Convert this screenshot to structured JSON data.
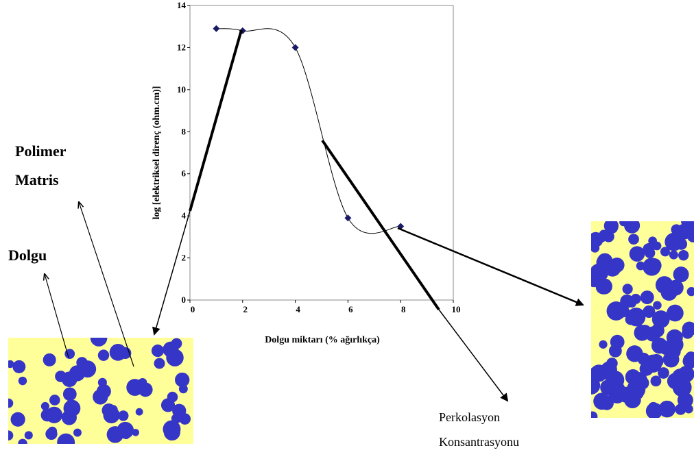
{
  "chart_data": {
    "type": "line",
    "x_label": "Dolgu miktarı (% ağırlıkça)",
    "y_label": "log [elektriksel direnç (ohm.cm)]",
    "x": [
      1,
      2,
      4,
      6,
      8
    ],
    "series": [
      {
        "color": "#1a1a66",
        "values": [
          12.9,
          12.8,
          12,
          3.9,
          3.5
        ]
      }
    ],
    "xlim": [
      0,
      10
    ],
    "xticks": [
      0,
      2,
      4,
      6,
      8,
      10
    ],
    "ylim": [
      0,
      14
    ],
    "yticks": [
      0,
      2,
      4,
      6,
      8,
      10,
      12,
      14
    ],
    "annotations": [
      {
        "lines": [
          "Polimer",
          "Matris"
        ]
      },
      {
        "lines": [
          "Dolgu"
        ]
      },
      {
        "lines": [
          "Perkolasyon",
          "Konsantrasyonu"
        ]
      }
    ]
  }
}
